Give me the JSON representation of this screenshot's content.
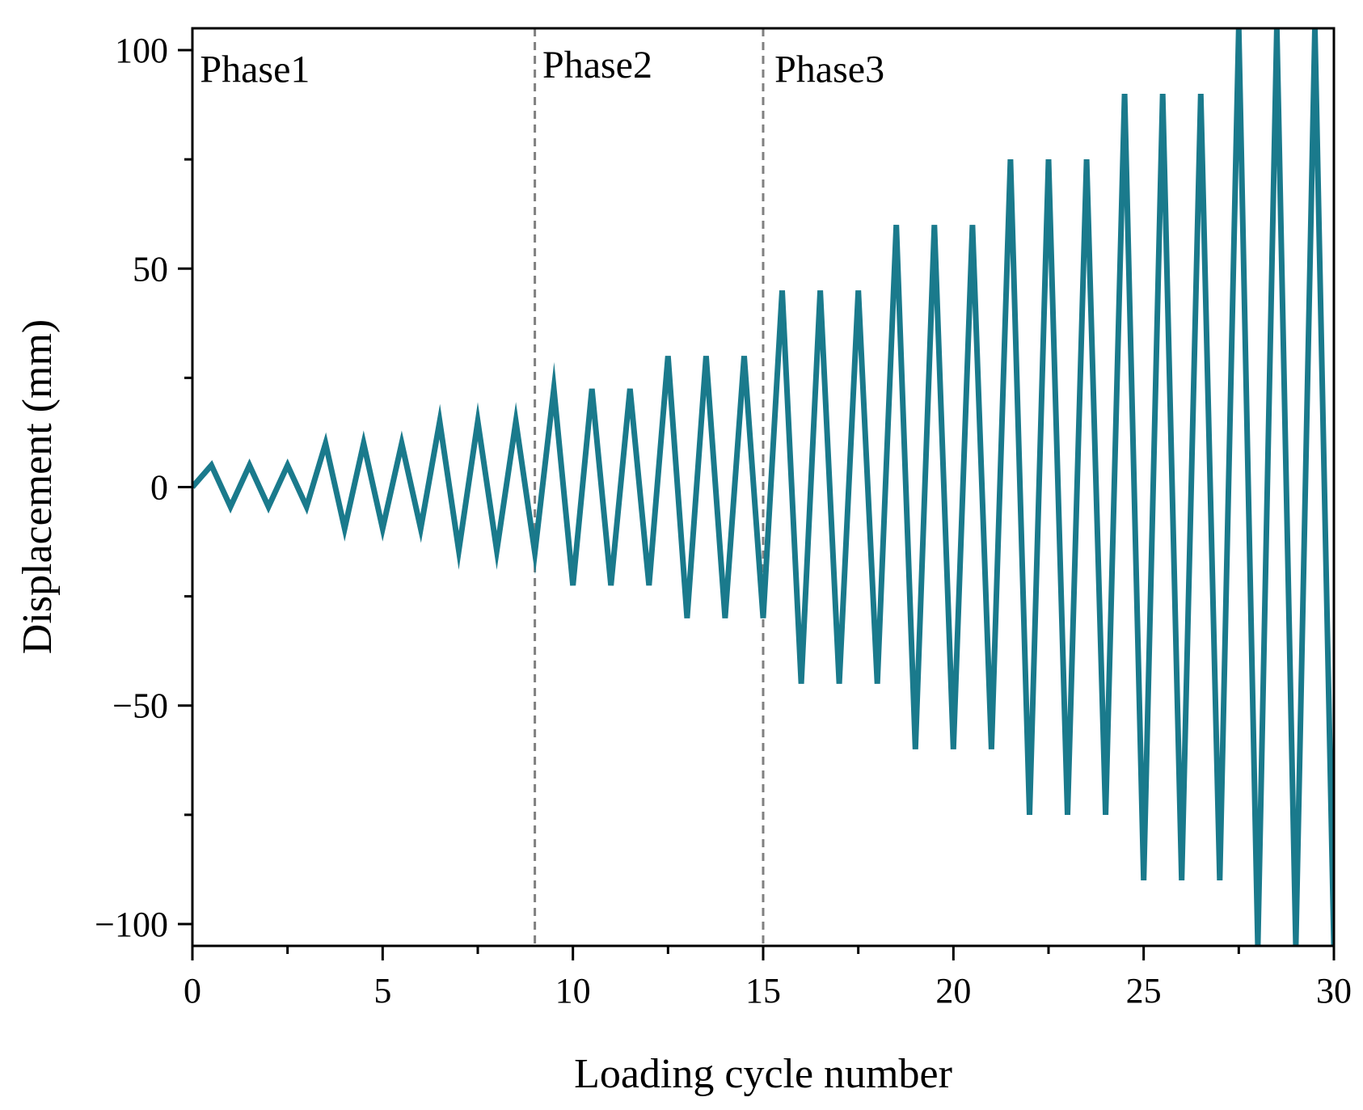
{
  "chart_data": {
    "type": "line",
    "title": "",
    "xlabel": "Loading cycle number",
    "ylabel": "Displacement (mm)",
    "xlim": [
      0,
      30
    ],
    "ylim": [
      -105,
      105
    ],
    "xticks": [
      0,
      5,
      10,
      15,
      20,
      25,
      30
    ],
    "xtick_labels": [
      "0",
      "5",
      "10",
      "15",
      "20",
      "25",
      "30"
    ],
    "yticks": [
      -100,
      -50,
      0,
      50,
      100
    ],
    "ytick_labels": [
      "−100",
      "−50",
      "0",
      "50",
      "100"
    ],
    "grid": false,
    "line_color": "#1a7a8c",
    "phase_line_color": "#808080",
    "phase_boundaries": [
      9,
      15
    ],
    "annotations": [
      {
        "text": "Phase1",
        "x": 0.2,
        "y": 96
      },
      {
        "text": "Phase2",
        "x": 9.2,
        "y": 97
      },
      {
        "text": "Phase3",
        "x": 15.3,
        "y": 96
      }
    ],
    "series": [
      {
        "name": "Displacement",
        "x": [
          0,
          0.5,
          1,
          1.5,
          2,
          2.5,
          3,
          3.5,
          4,
          4.5,
          5,
          5.5,
          6,
          6.5,
          7,
          7.5,
          8,
          8.5,
          9,
          9.5,
          10,
          10.5,
          11,
          11.5,
          12,
          12.5,
          13,
          13.5,
          14,
          14.5,
          15,
          15.5,
          16,
          16.5,
          17,
          17.5,
          18,
          18.5,
          19,
          19.5,
          20,
          20.5,
          21,
          21.5,
          22,
          22.5,
          23,
          23.5,
          24,
          24.5,
          25,
          25.5,
          26,
          26.5,
          27,
          27.5,
          28,
          28.5,
          29,
          29.5,
          30
        ],
        "y": [
          0,
          5,
          -4.5,
          5,
          -4.5,
          5,
          -4.5,
          10,
          -9.5,
          10,
          -9.5,
          10,
          -9.5,
          15,
          -14.5,
          15,
          -14.5,
          15,
          -15,
          22.5,
          -22.5,
          22.5,
          -22.5,
          22.5,
          -22.5,
          30,
          -30,
          30,
          -30,
          30,
          -30,
          45,
          -45,
          45,
          -45,
          45,
          -45,
          60,
          -60,
          60,
          -60,
          60,
          -60,
          75,
          -75,
          75,
          -75,
          75,
          -75,
          90,
          -90,
          90,
          -90,
          90,
          -90,
          105,
          -105,
          105,
          -105,
          105,
          -105
        ]
      }
    ]
  }
}
